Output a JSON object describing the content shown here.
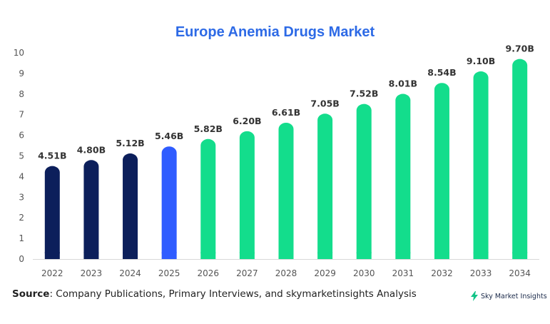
{
  "colors": {
    "historical": "#0c1f5b",
    "current": "#2f5cff",
    "forecast": "#13dd8c",
    "title": "#2d6ae6",
    "axis": "#555555",
    "label": "#333333"
  },
  "chart_data": {
    "type": "bar",
    "title": "Europe Anemia Drugs Market",
    "categories": [
      "2022",
      "2023",
      "2024",
      "2025",
      "2026",
      "2027",
      "2028",
      "2029",
      "2030",
      "2031",
      "2032",
      "2033",
      "2034"
    ],
    "values": [
      4.51,
      4.8,
      5.12,
      5.46,
      5.82,
      6.2,
      6.61,
      7.05,
      7.52,
      8.01,
      8.54,
      9.1,
      9.7
    ],
    "data_labels": [
      "4.51B",
      "4.80B",
      "5.12B",
      "5.46B",
      "5.82B",
      "6.20B",
      "6.61B",
      "7.05B",
      "7.52B",
      "8.01B",
      "8.54B",
      "9.10B",
      "9.70B"
    ],
    "bar_color_keys": [
      "historical",
      "historical",
      "historical",
      "current",
      "forecast",
      "forecast",
      "forecast",
      "forecast",
      "forecast",
      "forecast",
      "forecast",
      "forecast",
      "forecast"
    ],
    "ylim": [
      0,
      10
    ],
    "yticks": [
      "0",
      "1",
      "2",
      "3",
      "4",
      "5",
      "6",
      "7",
      "8",
      "9",
      "10"
    ],
    "xlabel": "",
    "ylabel": "",
    "grid": false,
    "legend": "none"
  },
  "footer": {
    "source_label": "Source",
    "source_text": ": Company Publications, Primary Interviews, and skymarketinsights Analysis",
    "brand": "Sky Market Insights",
    "brand_icon": "lightning-bolt-icon"
  }
}
